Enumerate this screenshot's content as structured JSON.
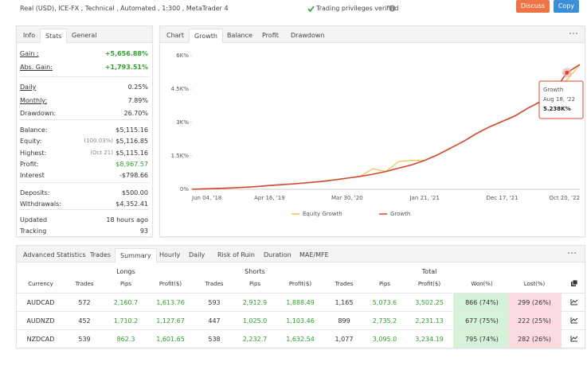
{
  "header": {
    "account": "Real (USD), ICE-FX , Technical , Automated , 1:300 , MetaTrader 4",
    "verified": "Trading privileges verified",
    "buttons": [
      "Discuss",
      "Copy"
    ]
  },
  "stats": {
    "tabs": [
      "Info",
      "Stats",
      "General"
    ],
    "groups": [
      [
        {
          "label": "Gain :",
          "value": "+5,656.88%"
        },
        {
          "label": "Abs. Gain:",
          "value": "+1,793.51%"
        }
      ],
      [
        {
          "label": "Daily",
          "value": "0.25%"
        },
        {
          "label": "Monthly:",
          "value": "7.89%"
        },
        {
          "label": "Drawdown:",
          "value": "26.70%"
        }
      ],
      [
        {
          "label": "Balance:",
          "value": "$5,115.16"
        },
        {
          "label": "Equity:",
          "note": "(100.03%)",
          "value": "$5,116.85"
        },
        {
          "label": "Highest:",
          "note": "(Oct 21)",
          "value": "$5,115.16"
        },
        {
          "label": "Profit:",
          "value": "$8,967.57"
        },
        {
          "label": "Interest",
          "value": "-$798.66"
        }
      ],
      [
        {
          "label": "Deposits:",
          "value": "$500.00"
        },
        {
          "label": "Withdrawals:",
          "value": "$4,352.41"
        }
      ],
      [
        {
          "label": "Updated",
          "value": "18 hours ago"
        },
        {
          "label": "Tracking",
          "value": "93"
        }
      ]
    ]
  },
  "chart_tabs": [
    "Chart",
    "Growth",
    "Balance",
    "Profit",
    "Drawdown"
  ],
  "chart_data": {
    "type": "line",
    "categories": [
      "Jun 04, '18",
      null,
      null,
      null,
      null,
      null,
      "Apr 16, '19",
      null,
      null,
      null,
      null,
      null,
      "Mar 30, '20",
      null,
      null,
      null,
      null,
      null,
      "Jan 21, '21",
      null,
      null,
      null,
      null,
      null,
      "Dec 17, '21",
      null,
      null,
      null,
      null,
      null,
      "Oct 20, '22"
    ],
    "series": [
      {
        "name": "Equity Growth",
        "color": "#f2c14e",
        "values": [
          0,
          20,
          40,
          60,
          90,
          120,
          170,
          210,
          250,
          300,
          350,
          420,
          500,
          580,
          930,
          800,
          1250,
          1300,
          1300,
          1550,
          1850,
          2150,
          2500,
          2800,
          3050,
          3300,
          3650,
          3950,
          4400,
          4900,
          5600
        ]
      },
      {
        "name": "Growth",
        "color": "#d4472c",
        "values": [
          0,
          20,
          40,
          60,
          90,
          120,
          170,
          210,
          250,
          300,
          350,
          420,
          500,
          580,
          680,
          800,
          950,
          1100,
          1300,
          1550,
          1850,
          2150,
          2500,
          2800,
          3050,
          3300,
          3650,
          3950,
          4400,
          5238,
          5600
        ]
      }
    ],
    "ylim": [
      0,
      6000
    ],
    "yticks": [
      {
        "value": 0,
        "label": "0%"
      },
      {
        "value": 1500,
        "label": "1.5K%"
      },
      {
        "value": 3000,
        "label": "3K%"
      },
      {
        "value": 4500,
        "label": "4.5K%"
      },
      {
        "value": 6000,
        "label": "6K%"
      }
    ],
    "grid": false,
    "legend": "bottom",
    "tooltip": {
      "series": "Growth",
      "date": "Aug 18, '22",
      "label": "5.238K%"
    }
  },
  "table": {
    "tabs": [
      "Advanced Statistics",
      "Trades",
      "Summary",
      "Hourly",
      "Daily",
      "Risk of Ruin",
      "Duration",
      "MAE/MFE"
    ],
    "groups": [
      "Longs",
      "Shorts",
      "Total"
    ],
    "columns": [
      "Currency",
      "Trades",
      "Pips",
      "Profit($)",
      "Trades",
      "Pips",
      "Profit($)",
      "Trades",
      "Pips",
      "Profit($)",
      "Won(%)",
      "Lost(%)"
    ],
    "rows": [
      [
        "AUDCAD",
        "572",
        "2,160.7",
        "1,613.76",
        "593",
        "2,912.9",
        "1,888.49",
        "1,165",
        "5,073.6",
        "3,502.25",
        "866 (74%)",
        "299 (26%)"
      ],
      [
        "AUDNZD",
        "452",
        "1,710.2",
        "1,127.67",
        "447",
        "1,025.0",
        "1,103.46",
        "899",
        "2,735.2",
        "2,231.13",
        "677 (75%)",
        "222 (25%)"
      ],
      [
        "NZDCAD",
        "539",
        "862.3",
        "1,601.65",
        "538",
        "2,232.7",
        "1,632.54",
        "1,077",
        "3,095.0",
        "3,234.19",
        "795 (74%)",
        "282 (26%)"
      ]
    ]
  }
}
